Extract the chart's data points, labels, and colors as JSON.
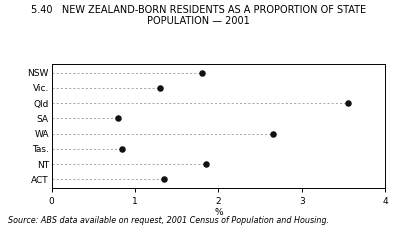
{
  "title_line1": "5.40   NEW ZEALAND-BORN RESIDENTS AS A PROPORTION OF STATE",
  "title_line2": "POPULATION — 2001",
  "states": [
    "NSW",
    "Vic.",
    "Qld",
    "SA",
    "WA",
    "Tas.",
    "NT",
    "ACT"
  ],
  "values": [
    1.8,
    1.3,
    3.55,
    0.8,
    2.65,
    0.85,
    1.85,
    1.35
  ],
  "xlabel": "%",
  "xlim": [
    0,
    4
  ],
  "xticks": [
    0,
    1,
    2,
    3,
    4
  ],
  "source_text": "Source: ABS data available on request, 2001 Census of Population and Housing.",
  "dot_color": "#111111",
  "dot_size": 22,
  "line_color": "#999999",
  "background_color": "#ffffff",
  "title_fontsize": 7.0,
  "axis_fontsize": 6.5,
  "source_fontsize": 5.8
}
